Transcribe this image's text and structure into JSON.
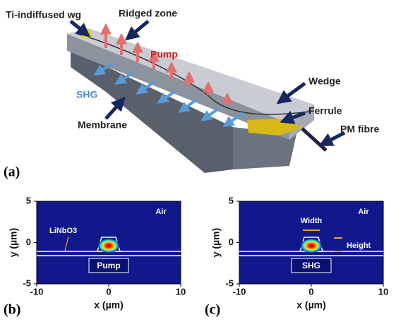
{
  "panel_a": {
    "label": "(a)",
    "callouts": {
      "waveguide": "Ti-indiffused wg",
      "ridge": "Ridged zone",
      "pump": "Pump",
      "shg": "SHG",
      "membrane": "Membrane",
      "wedge": "Wedge",
      "ferrule": "Ferrule",
      "fibre": "PM fibre"
    }
  },
  "panel_b": {
    "label": "(b)",
    "x_label": "x (µm)",
    "y_label": "y (µm)",
    "xlim": [
      -10,
      10
    ],
    "ylim": [
      -5,
      5
    ],
    "xticks": [
      -10,
      0,
      10
    ],
    "yticks": [
      5,
      0,
      -5
    ],
    "annotations": {
      "air": "Air",
      "substrate": "LiNbO3"
    },
    "mode": "Pump"
  },
  "panel_c": {
    "label": "(c)",
    "x_label": "x (µm)",
    "y_label": "y (µm)",
    "xlim": [
      -10,
      10
    ],
    "ylim": [
      -5,
      5
    ],
    "xticks": [
      -10,
      0,
      10
    ],
    "yticks": [
      5,
      0,
      -5
    ],
    "annotations": {
      "air": "Air",
      "width": "Width",
      "height": "Height"
    },
    "mode": "SHG"
  }
}
